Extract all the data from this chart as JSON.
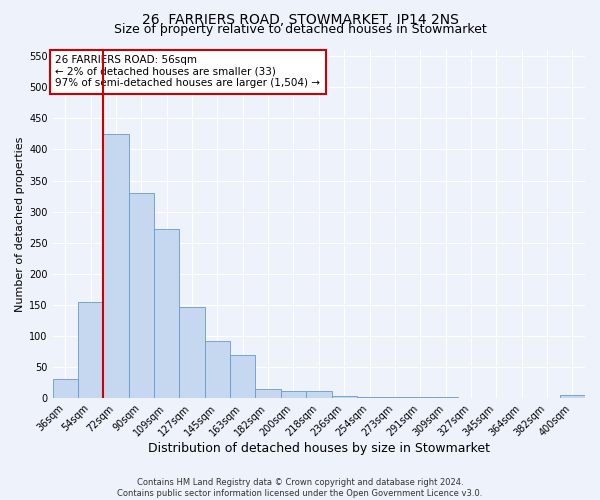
{
  "title_line1": "26, FARRIERS ROAD, STOWMARKET, IP14 2NS",
  "title_line2": "Size of property relative to detached houses in Stowmarket",
  "xlabel": "Distribution of detached houses by size in Stowmarket",
  "ylabel": "Number of detached properties",
  "bar_labels": [
    "36sqm",
    "54sqm",
    "72sqm",
    "90sqm",
    "109sqm",
    "127sqm",
    "145sqm",
    "163sqm",
    "182sqm",
    "200sqm",
    "218sqm",
    "236sqm",
    "254sqm",
    "273sqm",
    "291sqm",
    "309sqm",
    "327sqm",
    "345sqm",
    "364sqm",
    "382sqm",
    "400sqm"
  ],
  "bar_heights": [
    30,
    155,
    425,
    330,
    272,
    146,
    91,
    69,
    15,
    11,
    12,
    3,
    2,
    1,
    1,
    1,
    0,
    0,
    0,
    0,
    5
  ],
  "bar_color": "#c5d8f0",
  "bar_edge_color": "#6699cc",
  "vline_x": 1.5,
  "vline_color": "#cc0000",
  "ylim": [
    0,
    560
  ],
  "yticks": [
    0,
    50,
    100,
    150,
    200,
    250,
    300,
    350,
    400,
    450,
    500,
    550
  ],
  "annotation_title": "26 FARRIERS ROAD: 56sqm",
  "annotation_line2": "← 2% of detached houses are smaller (33)",
  "annotation_line3": "97% of semi-detached houses are larger (1,504) →",
  "annotation_box_color": "#ffffff",
  "annotation_box_edgecolor": "#cc0000",
  "footnote1": "Contains HM Land Registry data © Crown copyright and database right 2024.",
  "footnote2": "Contains public sector information licensed under the Open Government Licence v3.0.",
  "background_color": "#eef2fa",
  "grid_color": "#ffffff",
  "title_fontsize": 10,
  "subtitle_fontsize": 9,
  "xlabel_fontsize": 9,
  "ylabel_fontsize": 8,
  "tick_fontsize": 7,
  "annot_fontsize": 7.5,
  "footnote_fontsize": 6
}
